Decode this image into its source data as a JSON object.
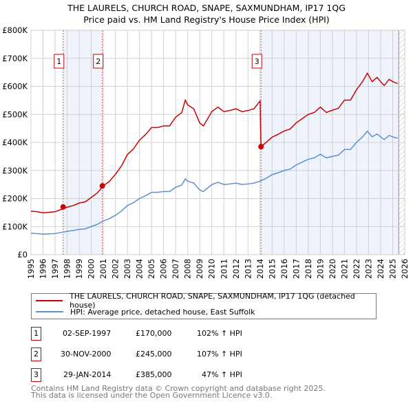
{
  "title": "THE LAURELS, CHURCH ROAD, SNAPE, SAXMUNDHAM, IP17 1QG",
  "subtitle": "Price paid vs. HM Land Registry's House Price Index (HPI)",
  "chart_data": {
    "type": "line",
    "xlim": [
      1995,
      2026
    ],
    "ylim": [
      0,
      800000
    ],
    "yticks": [
      {
        "v": 0,
        "label": "£0"
      },
      {
        "v": 100000,
        "label": "£100K"
      },
      {
        "v": 200000,
        "label": "£200K"
      },
      {
        "v": 300000,
        "label": "£300K"
      },
      {
        "v": 400000,
        "label": "£400K"
      },
      {
        "v": 500000,
        "label": "£500K"
      },
      {
        "v": 600000,
        "label": "£600K"
      },
      {
        "v": 700000,
        "label": "£700K"
      },
      {
        "v": 800000,
        "label": "£800K"
      }
    ],
    "xticks": [
      "1995",
      "1996",
      "1997",
      "1998",
      "1999",
      "2000",
      "2001",
      "2002",
      "2003",
      "2004",
      "2005",
      "2006",
      "2007",
      "2008",
      "2009",
      "2010",
      "2011",
      "2012",
      "2013",
      "2014",
      "2015",
      "2016",
      "2017",
      "2018",
      "2019",
      "2020",
      "2021",
      "2022",
      "2023",
      "2024",
      "2025",
      "2026"
    ],
    "grid": true,
    "series": [
      {
        "name": "THE LAURELS, CHURCH ROAD, SNAPE, SAXMUNDHAM, IP17 1QG (detached house)",
        "color": "#cc0000",
        "x": [
          1995,
          1995.5,
          1996,
          1996.5,
          1997,
          1997.5,
          1998,
          1998.5,
          1999,
          1999.5,
          2000,
          2000.5,
          2001,
          2001.5,
          2002,
          2002.5,
          2003,
          2003.5,
          2004,
          2004.5,
          2005,
          2005.5,
          2006,
          2006.5,
          2007,
          2007.5,
          2007.8,
          2008,
          2008.5,
          2009,
          2009.3,
          2009.5,
          2010,
          2010.5,
          2011,
          2011.5,
          2012,
          2012.5,
          2013,
          2013.5,
          2014,
          2014.08,
          2014.5,
          2015,
          2015.5,
          2016,
          2016.5,
          2017,
          2017.5,
          2018,
          2018.5,
          2019,
          2019.5,
          2020,
          2020.5,
          2021,
          2021.5,
          2022,
          2022.5,
          2022.9,
          2023.3,
          2023.7,
          2024,
          2024.3,
          2024.7,
          2025,
          2025.4
        ],
        "y": [
          155000,
          153000,
          149000,
          151000,
          153000,
          161000,
          169000,
          175000,
          184000,
          188000,
          204000,
          220000,
          245000,
          261000,
          286000,
          316000,
          357000,
          377000,
          408000,
          428000,
          453000,
          453000,
          459000,
          459000,
          490000,
          506000,
          551000,
          534000,
          520000,
          469000,
          459000,
          473000,
          510000,
          526000,
          510000,
          514000,
          520000,
          510000,
          514000,
          520000,
          548000,
          385000,
          400000,
          419000,
          429000,
          441000,
          448000,
          470000,
          485000,
          500000,
          507000,
          526000,
          507000,
          515000,
          522000,
          551000,
          551000,
          588000,
          617000,
          647000,
          617000,
          632000,
          617000,
          603000,
          625000,
          617000,
          610000
        ]
      },
      {
        "name": "HPI: Average price, detached house, East Suffolk",
        "color": "#5b8fd4",
        "x": [
          1995,
          1995.5,
          1996,
          1996.5,
          1997,
          1997.5,
          1998,
          1998.5,
          1999,
          1999.5,
          2000,
          2000.5,
          2001,
          2001.5,
          2002,
          2002.5,
          2003,
          2003.5,
          2004,
          2004.5,
          2005,
          2005.5,
          2006,
          2006.5,
          2007,
          2007.5,
          2007.8,
          2008,
          2008.5,
          2009,
          2009.3,
          2009.5,
          2010,
          2010.5,
          2011,
          2011.5,
          2012,
          2012.5,
          2013,
          2013.5,
          2014,
          2014.5,
          2015,
          2015.5,
          2016,
          2016.5,
          2017,
          2017.5,
          2018,
          2018.5,
          2019,
          2019.5,
          2020,
          2020.5,
          2021,
          2021.5,
          2022,
          2022.5,
          2022.9,
          2023.3,
          2023.7,
          2024,
          2024.3,
          2024.7,
          2025,
          2025.4
        ],
        "y": [
          76000,
          75000,
          73000,
          74000,
          75000,
          79000,
          83000,
          86000,
          90000,
          92000,
          100000,
          108000,
          120000,
          128000,
          140000,
          155000,
          175000,
          185000,
          200000,
          210000,
          222000,
          222000,
          225000,
          225000,
          240000,
          248000,
          270000,
          262000,
          255000,
          230000,
          225000,
          232000,
          250000,
          258000,
          250000,
          252000,
          255000,
          250000,
          252000,
          255000,
          262000,
          272000,
          285000,
          292000,
          300000,
          305000,
          320000,
          330000,
          340000,
          345000,
          358000,
          345000,
          350000,
          355000,
          375000,
          375000,
          400000,
          420000,
          440000,
          420000,
          430000,
          420000,
          410000,
          425000,
          420000,
          415000
        ]
      }
    ],
    "sales": [
      {
        "label": "1",
        "x": 1997.67,
        "y": 170000,
        "date": "02-SEP-1997",
        "price": "£170,000",
        "hpi": "102% ↑ HPI"
      },
      {
        "label": "2",
        "x": 2000.92,
        "y": 245000,
        "date": "30-NOV-2000",
        "price": "£245,000",
        "hpi": "107% ↑ HPI"
      },
      {
        "label": "3",
        "x": 2014.08,
        "y": 385000,
        "date": "29-JAN-2014",
        "price": "£385,000",
        "hpi": "47% ↑ HPI"
      }
    ],
    "shaded": [
      [
        1997.67,
        2000.92
      ],
      [
        2014.08,
        2025.5
      ]
    ],
    "hatched": [
      2025.5,
      2026
    ],
    "legend_position": "bottom"
  },
  "footer": [
    "Contains HM Land Registry data © Crown copyright and database right 2025.",
    "This data is licensed under the Open Government Licence v3.0."
  ]
}
